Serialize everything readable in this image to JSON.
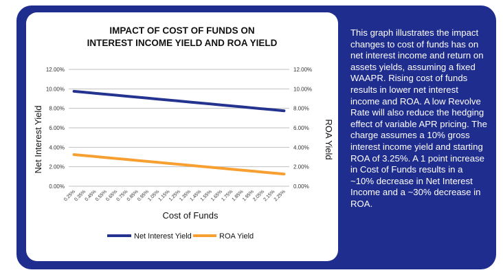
{
  "description": "This graph illustrates the impact changes to cost of funds has on net interest income and return on assets yields, assuming a fixed WAAPR. Rising cost of funds results in lower net interest income and ROA. A low Revolve Rate will also reduce the hedging effect of variable APR pricing. The charge assumes a 10% gross interest income yield and starting ROA of 3.25%. A 1 point increase in Cost of Funds results in a ~10% decrease in Net Interest Income and a ~30% decrease in ROA.",
  "colors": {
    "panel": "#1f2d8f",
    "net_interest": "#23338f",
    "roa": "#f7a031",
    "grid": "#bfbfbf"
  },
  "chart_data": {
    "type": "line",
    "title_lines": [
      "IMPACT OF COST OF FUNDS ON",
      "INTEREST INCOME YIELD AND ROA YIELD"
    ],
    "xlabel": "Cost of Funds",
    "ylabel_left": "Net Interest Yield",
    "ylabel_right": "ROA Yield",
    "ylim": [
      0,
      12
    ],
    "yticks": [
      0,
      2,
      4,
      6,
      8,
      10,
      12
    ],
    "ytick_labels": [
      "0.00%",
      "2.00%",
      "4.00%",
      "6.00%",
      "8.00%",
      "10.00%",
      "12.00%"
    ],
    "grid": true,
    "legend_position": "bottom",
    "x": [
      "0.25%",
      "0.35%",
      "0.45%",
      "0.55%",
      "0.65%",
      "0.75%",
      "0.85%",
      "0.95%",
      "1.05%",
      "1.15%",
      "1.25%",
      "1.35%",
      "1.45%",
      "1.55%",
      "1.65%",
      "1.75%",
      "1.85%",
      "1.95%",
      "2.05%",
      "2.15%",
      "2.25%"
    ],
    "series": [
      {
        "name": "Net Interest Yield",
        "color": "#23338f",
        "values": [
          9.75,
          9.65,
          9.55,
          9.45,
          9.35,
          9.25,
          9.15,
          9.05,
          8.95,
          8.85,
          8.75,
          8.65,
          8.55,
          8.45,
          8.35,
          8.25,
          8.15,
          8.05,
          7.95,
          7.85,
          7.75
        ]
      },
      {
        "name": "ROA Yield",
        "color": "#f7a031",
        "values": [
          3.25,
          3.15,
          3.05,
          2.95,
          2.85,
          2.75,
          2.65,
          2.55,
          2.45,
          2.35,
          2.25,
          2.15,
          2.05,
          1.95,
          1.85,
          1.75,
          1.65,
          1.55,
          1.45,
          1.35,
          1.25
        ]
      }
    ]
  }
}
